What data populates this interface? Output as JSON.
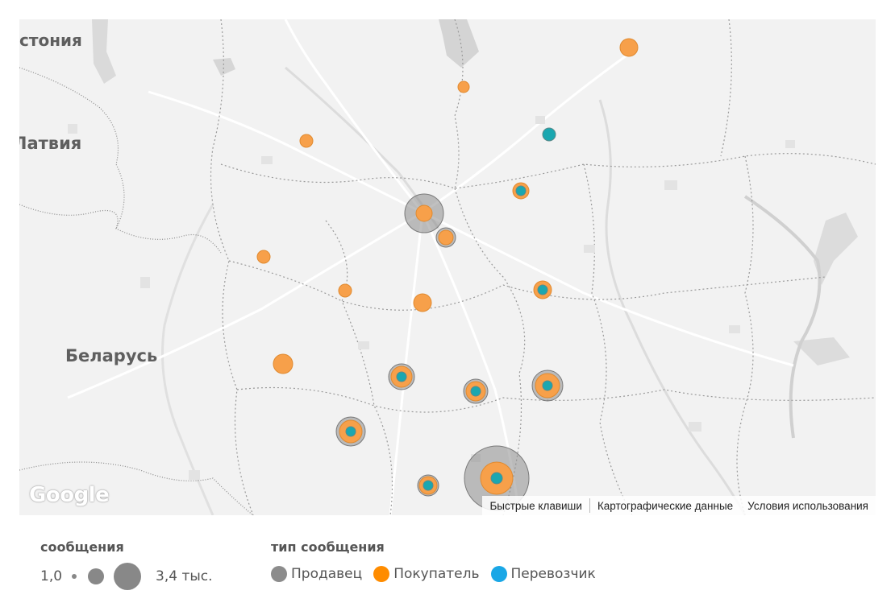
{
  "map": {
    "labels": {
      "estonia": "стония",
      "latvia": "Латвия",
      "belarus": "Беларусь"
    },
    "attribution": {
      "shortcuts": "Быстрые клавиши",
      "map_data": "Картографические данные",
      "terms": "Условия использования"
    },
    "logo": "Google"
  },
  "legend": {
    "size": {
      "title": "сообщения",
      "min_label": "1,0",
      "max_label": "3,4 тыс."
    },
    "type": {
      "title": "тип сообщения",
      "items": [
        {
          "label": "Продавец",
          "color": "#8c8c8c"
        },
        {
          "label": "Покупатель",
          "color": "#ff8c00"
        },
        {
          "label": "Перевозчик",
          "color": "#1aa7e6"
        }
      ]
    }
  },
  "colors": {
    "seller": "#8c8c8c",
    "buyer": "#f7a04a",
    "carrier": "#1aa7b0"
  }
}
